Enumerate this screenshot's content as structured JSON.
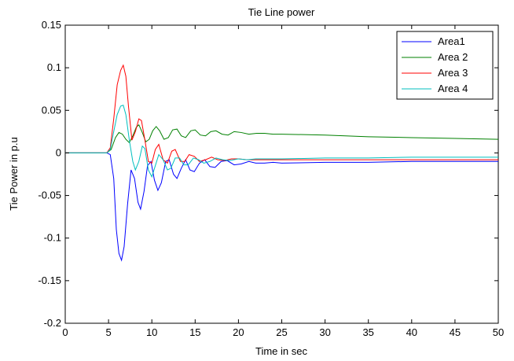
{
  "chart_data": {
    "type": "line",
    "title": "Tie Line power",
    "xlabel": "Time in sec",
    "ylabel": "Tie Power in p.u",
    "xlim": [
      0,
      50
    ],
    "ylim": [
      -0.2,
      0.15
    ],
    "xticks": [
      0,
      5,
      10,
      15,
      20,
      25,
      30,
      35,
      40,
      45,
      50
    ],
    "yticks": [
      -0.2,
      -0.15,
      -0.1,
      -0.05,
      0,
      0.05,
      0.1,
      0.15
    ],
    "xtick_labels": [
      "0",
      "5",
      "10",
      "15",
      "20",
      "25",
      "30",
      "35",
      "40",
      "45",
      "50"
    ],
    "ytick_labels": [
      "-0.2",
      "-0.15",
      "-0.1",
      "-0.05",
      "0",
      "0.05",
      "0.1",
      "0.15"
    ],
    "grid": false,
    "legend_position": "top-right",
    "series": [
      {
        "name": "Area1",
        "color": "#0000ff",
        "points": [
          [
            0,
            0
          ],
          [
            4.8,
            0
          ],
          [
            5.2,
            -0.002
          ],
          [
            5.6,
            -0.03
          ],
          [
            5.9,
            -0.09
          ],
          [
            6.2,
            -0.118
          ],
          [
            6.5,
            -0.126
          ],
          [
            6.8,
            -0.11
          ],
          [
            7.2,
            -0.06
          ],
          [
            7.6,
            -0.02
          ],
          [
            8,
            -0.03
          ],
          [
            8.4,
            -0.058
          ],
          [
            8.7,
            -0.066
          ],
          [
            9.1,
            -0.045
          ],
          [
            9.5,
            -0.015
          ],
          [
            9.9,
            -0.01
          ],
          [
            10.3,
            -0.032
          ],
          [
            10.7,
            -0.044
          ],
          [
            11.1,
            -0.035
          ],
          [
            11.6,
            -0.01
          ],
          [
            12,
            -0.008
          ],
          [
            12.5,
            -0.025
          ],
          [
            12.9,
            -0.03
          ],
          [
            13.4,
            -0.018
          ],
          [
            13.9,
            -0.008
          ],
          [
            14.4,
            -0.02
          ],
          [
            14.9,
            -0.022
          ],
          [
            15.5,
            -0.012
          ],
          [
            16.1,
            -0.008
          ],
          [
            16.7,
            -0.016
          ],
          [
            17.3,
            -0.017
          ],
          [
            18,
            -0.01
          ],
          [
            18.7,
            -0.009
          ],
          [
            19.5,
            -0.014
          ],
          [
            20.3,
            -0.013
          ],
          [
            21.2,
            -0.01
          ],
          [
            22,
            -0.012
          ],
          [
            23,
            -0.012
          ],
          [
            24,
            -0.011
          ],
          [
            25,
            -0.012
          ],
          [
            30,
            -0.011
          ],
          [
            35,
            -0.011
          ],
          [
            40,
            -0.01
          ],
          [
            45,
            -0.01
          ],
          [
            50,
            -0.01
          ]
        ]
      },
      {
        "name": "Area 2",
        "color": "#008000",
        "points": [
          [
            0,
            0
          ],
          [
            4.8,
            0
          ],
          [
            5.3,
            0.004
          ],
          [
            5.8,
            0.018
          ],
          [
            6.2,
            0.024
          ],
          [
            6.6,
            0.022
          ],
          [
            7,
            0.016
          ],
          [
            7.4,
            0.012
          ],
          [
            7.8,
            0.02
          ],
          [
            8.2,
            0.03
          ],
          [
            8.5,
            0.033
          ],
          [
            8.9,
            0.024
          ],
          [
            9.3,
            0.013
          ],
          [
            9.7,
            0.016
          ],
          [
            10.1,
            0.026
          ],
          [
            10.5,
            0.031
          ],
          [
            10.9,
            0.026
          ],
          [
            11.4,
            0.016
          ],
          [
            11.9,
            0.018
          ],
          [
            12.4,
            0.027
          ],
          [
            12.9,
            0.028
          ],
          [
            13.4,
            0.02
          ],
          [
            13.9,
            0.018
          ],
          [
            14.5,
            0.026
          ],
          [
            15,
            0.027
          ],
          [
            15.6,
            0.021
          ],
          [
            16.2,
            0.02
          ],
          [
            16.8,
            0.025
          ],
          [
            17.4,
            0.026
          ],
          [
            18.1,
            0.022
          ],
          [
            18.8,
            0.021
          ],
          [
            19.5,
            0.025
          ],
          [
            20.3,
            0.024
          ],
          [
            21.2,
            0.022
          ],
          [
            22.1,
            0.023
          ],
          [
            23,
            0.023
          ],
          [
            24,
            0.022
          ],
          [
            25,
            0.022
          ],
          [
            30,
            0.021
          ],
          [
            35,
            0.019
          ],
          [
            40,
            0.018
          ],
          [
            45,
            0.017
          ],
          [
            50,
            0.016
          ]
        ]
      },
      {
        "name": "Area 3",
        "color": "#ff0000",
        "points": [
          [
            0,
            0
          ],
          [
            4.8,
            0
          ],
          [
            5.2,
            0.006
          ],
          [
            5.6,
            0.04
          ],
          [
            6,
            0.08
          ],
          [
            6.4,
            0.097
          ],
          [
            6.7,
            0.103
          ],
          [
            7,
            0.09
          ],
          [
            7.3,
            0.055
          ],
          [
            7.7,
            0.015
          ],
          [
            8.1,
            0.025
          ],
          [
            8.5,
            0.04
          ],
          [
            8.8,
            0.038
          ],
          [
            9.2,
            0.015
          ],
          [
            9.6,
            -0.01
          ],
          [
            10,
            -0.012
          ],
          [
            10.4,
            0.004
          ],
          [
            10.8,
            0.01
          ],
          [
            11.3,
            -0.008
          ],
          [
            11.8,
            -0.012
          ],
          [
            12.3,
            0.002
          ],
          [
            12.7,
            0.004
          ],
          [
            13.3,
            -0.01
          ],
          [
            13.8,
            -0.01
          ],
          [
            14.3,
            -0.002
          ],
          [
            14.9,
            -0.004
          ],
          [
            15.5,
            -0.01
          ],
          [
            16.2,
            -0.008
          ],
          [
            16.9,
            -0.005
          ],
          [
            17.6,
            -0.008
          ],
          [
            18.4,
            -0.009
          ],
          [
            19.2,
            -0.007
          ],
          [
            20,
            -0.007
          ],
          [
            21,
            -0.008
          ],
          [
            22,
            -0.008
          ],
          [
            25,
            -0.008
          ],
          [
            30,
            -0.008
          ],
          [
            35,
            -0.008
          ],
          [
            40,
            -0.008
          ],
          [
            45,
            -0.008
          ],
          [
            50,
            -0.008
          ]
        ]
      },
      {
        "name": "Area 4",
        "color": "#00bfbf",
        "points": [
          [
            0,
            0
          ],
          [
            4.8,
            0
          ],
          [
            5.2,
            0.004
          ],
          [
            5.6,
            0.025
          ],
          [
            6,
            0.045
          ],
          [
            6.4,
            0.055
          ],
          [
            6.7,
            0.056
          ],
          [
            7,
            0.045
          ],
          [
            7.4,
            0.015
          ],
          [
            7.8,
            -0.01
          ],
          [
            8.1,
            -0.02
          ],
          [
            8.5,
            -0.01
          ],
          [
            8.9,
            0.008
          ],
          [
            9.2,
            0.005
          ],
          [
            9.6,
            -0.02
          ],
          [
            10,
            -0.028
          ],
          [
            10.4,
            -0.015
          ],
          [
            10.8,
            -0.002
          ],
          [
            11.3,
            -0.008
          ],
          [
            11.8,
            -0.02
          ],
          [
            12.2,
            -0.018
          ],
          [
            12.7,
            -0.006
          ],
          [
            13.2,
            -0.006
          ],
          [
            13.7,
            -0.014
          ],
          [
            14.2,
            -0.014
          ],
          [
            14.8,
            -0.006
          ],
          [
            15.4,
            -0.008
          ],
          [
            16,
            -0.012
          ],
          [
            16.7,
            -0.01
          ],
          [
            17.4,
            -0.006
          ],
          [
            18.2,
            -0.008
          ],
          [
            19,
            -0.009
          ],
          [
            20,
            -0.007
          ],
          [
            21,
            -0.008
          ],
          [
            22,
            -0.007
          ],
          [
            25,
            -0.007
          ],
          [
            30,
            -0.006
          ],
          [
            35,
            -0.006
          ],
          [
            40,
            -0.005
          ],
          [
            45,
            -0.005
          ],
          [
            50,
            -0.005
          ]
        ]
      }
    ]
  }
}
